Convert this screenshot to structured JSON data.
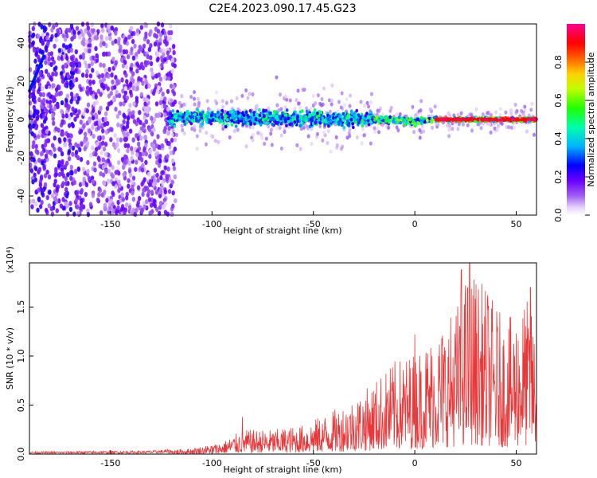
{
  "title": "C2E4.2023.090.17.45.G23",
  "chart_data": [
    {
      "type": "heatmap",
      "xlabel": "Height of straight line (km)",
      "ylabel": "Frequency (Hz)",
      "xlim": [
        -190,
        60
      ],
      "ylim": [
        -50,
        50
      ],
      "xticks": [
        -150,
        -100,
        -50,
        0,
        50
      ],
      "yticks": [
        -40,
        -20,
        0,
        20,
        40
      ],
      "colorbar": {
        "label": "Normalized spectral amplitude",
        "range": [
          0,
          1
        ],
        "ticks": [
          "0.0",
          "0.2",
          "0.4",
          "0.6",
          "0.8"
        ],
        "colormap": [
          "#ffffff",
          "#c8a0f0",
          "#8000ff",
          "#0000ff",
          "#00c8ff",
          "#00ff80",
          "#80ff00",
          "#ffff00",
          "#ff8000",
          "#ff0000",
          "#ff0080"
        ]
      },
      "signal_center_hz": [
        {
          "x": -120,
          "f": 1.0
        },
        {
          "x": -100,
          "f": 0.8
        },
        {
          "x": -80,
          "f": 1.0
        },
        {
          "x": -60,
          "f": 0.5
        },
        {
          "x": -40,
          "f": 0.5
        },
        {
          "x": -20,
          "f": 0.0
        },
        {
          "x": 0,
          "f": -1.0
        },
        {
          "x": 10,
          "f": 0.0
        },
        {
          "x": 30,
          "f": 0.0
        },
        {
          "x": 58,
          "f": 0.0
        }
      ]
    },
    {
      "type": "line",
      "xlabel": "Height of straight line (km)",
      "ylabel": "SNR (10 * v/v)",
      "scale_label": "(x10⁴)",
      "xlim": [
        -190,
        60
      ],
      "ylim": [
        0,
        1.95
      ],
      "xticks": [
        -150,
        -100,
        -50,
        0,
        50
      ],
      "yticks": [
        "0.0",
        "0.5",
        "1.0",
        "1.5"
      ],
      "color": "#e8393a",
      "envelope": [
        {
          "x": -190,
          "y": 0.02
        },
        {
          "x": -130,
          "y": 0.03
        },
        {
          "x": -110,
          "y": 0.06
        },
        {
          "x": -95,
          "y": 0.12
        },
        {
          "x": -85,
          "y": 0.25
        },
        {
          "x": -70,
          "y": 0.25
        },
        {
          "x": -55,
          "y": 0.3
        },
        {
          "x": -40,
          "y": 0.45
        },
        {
          "x": -25,
          "y": 0.65
        },
        {
          "x": -10,
          "y": 0.95
        },
        {
          "x": 0,
          "y": 1.05
        },
        {
          "x": 10,
          "y": 1.25
        },
        {
          "x": 20,
          "y": 1.5
        },
        {
          "x": 27,
          "y": 1.92
        },
        {
          "x": 35,
          "y": 1.7
        },
        {
          "x": 45,
          "y": 1.35
        },
        {
          "x": 55,
          "y": 1.6
        },
        {
          "x": 60,
          "y": 1.3
        }
      ],
      "peaks": [
        {
          "x": -85,
          "y": 0.38
        },
        {
          "x": 0,
          "y": 1.22
        },
        {
          "x": 23,
          "y": 1.88
        },
        {
          "x": 27,
          "y": 1.95
        },
        {
          "x": 36,
          "y": 1.62
        },
        {
          "x": 57,
          "y": 1.7
        }
      ]
    }
  ]
}
